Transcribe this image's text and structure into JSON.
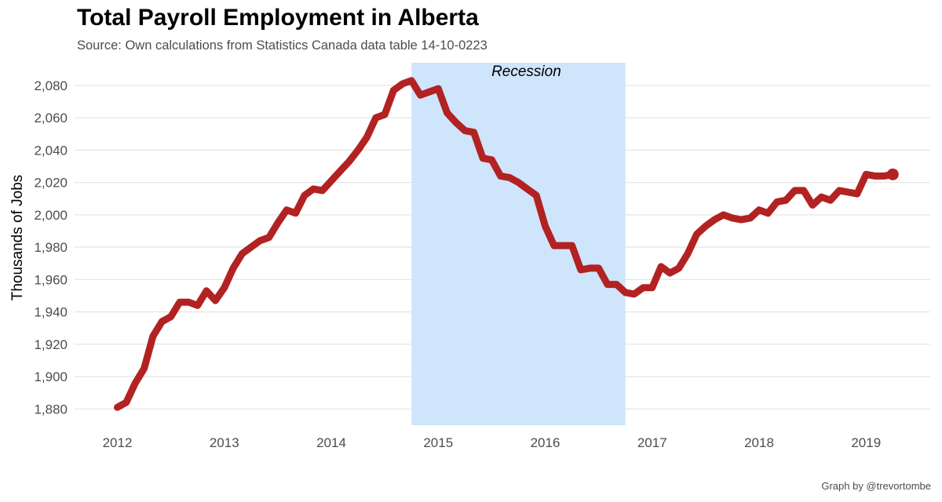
{
  "title": "Total Payroll Employment in Alberta",
  "subtitle": "Source: Own calculations from Statistics Canada data table 14-10-0223",
  "caption": "Graph by @trevortombe",
  "chart_data": {
    "type": "line",
    "title": "Total Payroll Employment in Alberta",
    "ylabel": "Thousands of Jobs",
    "xlabel": "",
    "xlim": [
      2011.6,
      2019.6
    ],
    "ylim": [
      1870,
      2094
    ],
    "x_ticks": [
      2012,
      2013,
      2014,
      2015,
      2016,
      2017,
      2018,
      2019
    ],
    "y_ticks": [
      1880,
      1900,
      1920,
      1940,
      1960,
      1980,
      2000,
      2020,
      2040,
      2060,
      2080
    ],
    "grid": true,
    "annotation": {
      "label": "Recession",
      "x_start": 2014.75,
      "x_end": 2016.75,
      "color": "#cfe5fb"
    },
    "series": [
      {
        "color": "#b22222",
        "endpoint_marker": true,
        "x": [
          2012.0,
          2012.083,
          2012.167,
          2012.25,
          2012.333,
          2012.417,
          2012.5,
          2012.583,
          2012.667,
          2012.75,
          2012.833,
          2012.917,
          2013.0,
          2013.083,
          2013.167,
          2013.25,
          2013.333,
          2013.417,
          2013.5,
          2013.583,
          2013.667,
          2013.75,
          2013.833,
          2013.917,
          2014.0,
          2014.083,
          2014.167,
          2014.25,
          2014.333,
          2014.417,
          2014.5,
          2014.583,
          2014.667,
          2014.75,
          2014.833,
          2014.917,
          2015.0,
          2015.083,
          2015.167,
          2015.25,
          2015.333,
          2015.417,
          2015.5,
          2015.583,
          2015.667,
          2015.75,
          2015.833,
          2015.917,
          2016.0,
          2016.083,
          2016.167,
          2016.25,
          2016.333,
          2016.417,
          2016.5,
          2016.583,
          2016.667,
          2016.75,
          2016.833,
          2016.917,
          2017.0,
          2017.083,
          2017.167,
          2017.25,
          2017.333,
          2017.417,
          2017.5,
          2017.583,
          2017.667,
          2017.75,
          2017.833,
          2017.917,
          2018.0,
          2018.083,
          2018.167,
          2018.25,
          2018.333,
          2018.417,
          2018.5,
          2018.583,
          2018.667,
          2018.75,
          2018.833,
          2018.917,
          2019.0,
          2019.083,
          2019.167,
          2019.25
        ],
        "y": [
          1881,
          1884,
          1896,
          1905,
          1925,
          1934,
          1937,
          1946,
          1946,
          1944,
          1953,
          1947,
          1955,
          1967,
          1976,
          1980,
          1984,
          1986,
          1995,
          2003,
          2001,
          2012,
          2016,
          2015,
          2021,
          2027,
          2033,
          2040,
          2048,
          2060,
          2062,
          2077,
          2081,
          2083,
          2074,
          2076,
          2078,
          2063,
          2057,
          2052,
          2051,
          2035,
          2034,
          2024,
          2023,
          2020,
          2016,
          2012,
          1993,
          1981,
          1981,
          1981,
          1966,
          1967,
          1967,
          1957,
          1957,
          1952,
          1951,
          1955,
          1955,
          1968,
          1964,
          1967,
          1976,
          1988,
          1993,
          1997,
          2000,
          1998,
          1997,
          1998,
          2003,
          2001,
          2008,
          2009,
          2015,
          2015,
          2006,
          2011,
          2009,
          2015,
          2014,
          2013,
          2025,
          2024,
          2024,
          2025
        ]
      }
    ]
  }
}
